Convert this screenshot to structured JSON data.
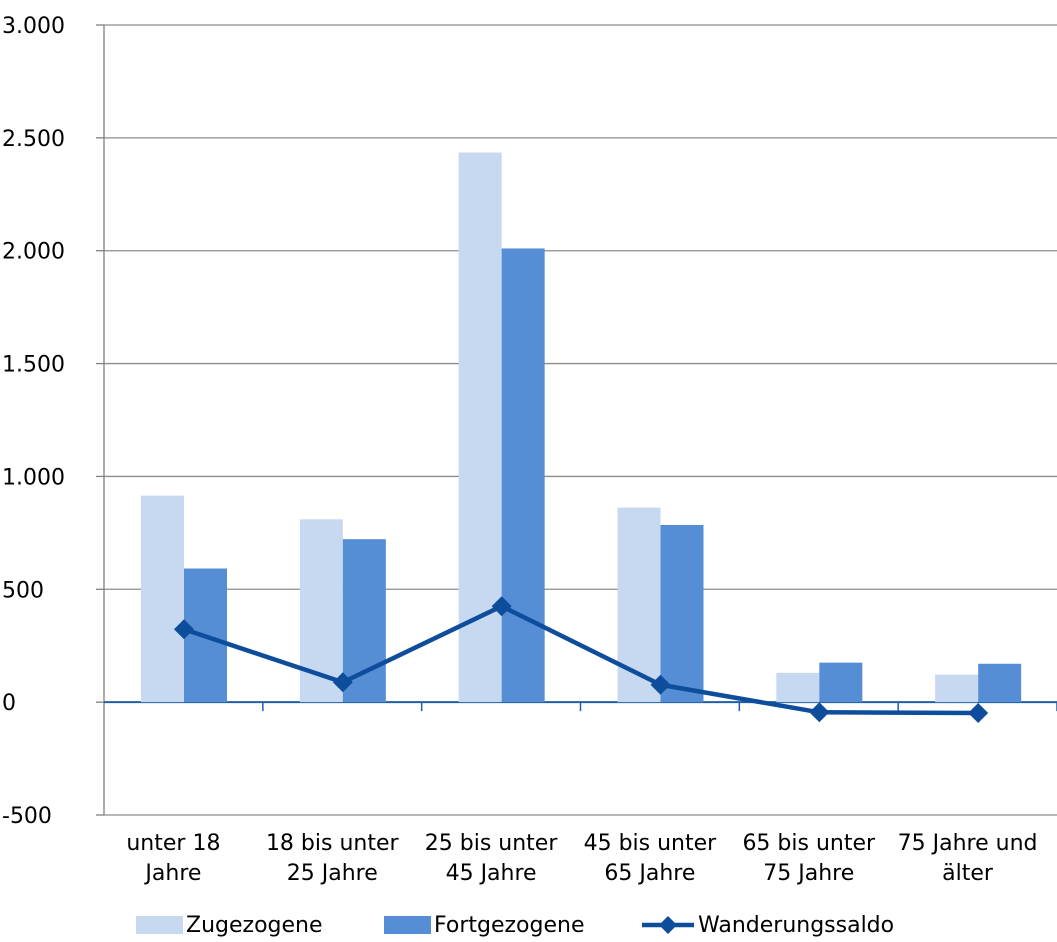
{
  "chart_data": {
    "type": "bar",
    "categories": [
      [
        "unter 18",
        "Jahre"
      ],
      [
        "18 bis unter",
        "25 Jahre"
      ],
      [
        "25 bis unter",
        "45 Jahre"
      ],
      [
        "45 bis unter",
        "65 Jahre"
      ],
      [
        "65 bis unter",
        "75 Jahre"
      ],
      [
        "75 Jahre und",
        "älter"
      ]
    ],
    "series": [
      {
        "name": "Zugezogene",
        "type": "bar",
        "color": "#c6d9f1",
        "values": [
          915,
          810,
          2435,
          862,
          130,
          122
        ]
      },
      {
        "name": "Fortgezogene",
        "type": "bar",
        "color": "#558ed5",
        "values": [
          592,
          722,
          2010,
          785,
          175,
          170
        ]
      },
      {
        "name": "Wanderungssaldo",
        "type": "line",
        "color": "#0e4d9c",
        "marker": "diamond",
        "values": [
          323,
          88,
          425,
          77,
          -45,
          -48
        ]
      }
    ],
    "ylim": [
      -500,
      3000
    ],
    "yticks": [
      -500,
      0,
      500,
      1000,
      1500,
      2000,
      2500,
      3000
    ],
    "ytick_labels": [
      "-500",
      "0",
      "500",
      "1.000",
      "1.500",
      "2.000",
      "2.500",
      "3.000"
    ],
    "title": "",
    "xlabel": "",
    "ylabel": "",
    "grid": true,
    "legend_position": "bottom",
    "colors": {
      "gridline": "#8c8c8c",
      "axis": "#808080",
      "zero_line": "#1f5fa8"
    }
  }
}
